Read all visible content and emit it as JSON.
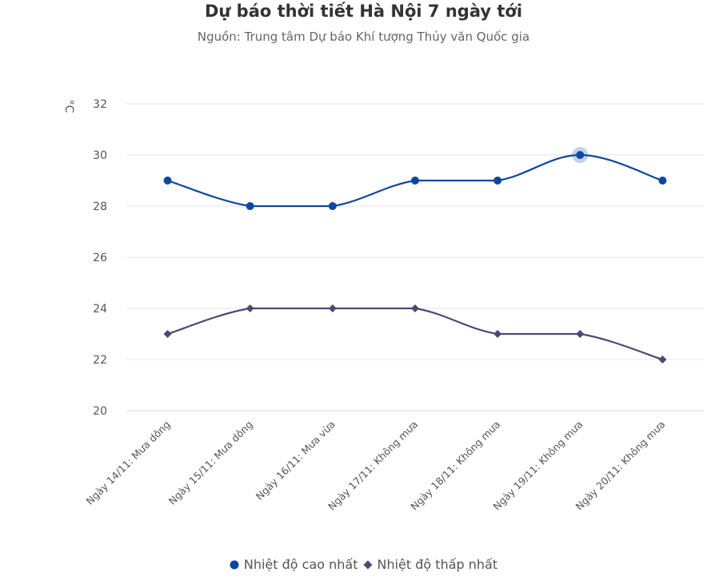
{
  "chart_data": {
    "type": "line",
    "title": "Dự báo thời tiết Hà Nội 7 ngày tới",
    "subtitle": "Nguồn: Trung tâm Dự báo Khí tượng Thủy văn Quốc gia",
    "ylabel": "°C",
    "xlabel": "",
    "ylim": [
      20,
      32
    ],
    "yticks": [
      "20",
      "22",
      "24",
      "26",
      "28",
      "30",
      "32"
    ],
    "grid": true,
    "legend_position": "bottom",
    "categories": [
      "Ngày 14/11: Mưa dông",
      "Ngày 15/11: Mưa dông",
      "Ngày 16/11: Mưa vừa",
      "Ngày 17/11: Không mưa",
      "Ngày 18/11: Không mưa",
      "Ngày 19/11: Không mưa",
      "Ngày 20/11: Không mưa"
    ],
    "series": [
      {
        "name": "Nhiệt độ cao nhất",
        "color": "#0d47a1",
        "marker": "circle",
        "values": [
          29,
          28,
          28,
          29,
          29,
          30,
          29
        ]
      },
      {
        "name": "Nhiệt độ thấp nhất",
        "color": "#4a4a72",
        "marker": "diamond",
        "values": [
          23,
          24,
          24,
          24,
          23,
          23,
          22
        ]
      }
    ],
    "highlighted_point": {
      "series": 0,
      "index": 5
    }
  }
}
